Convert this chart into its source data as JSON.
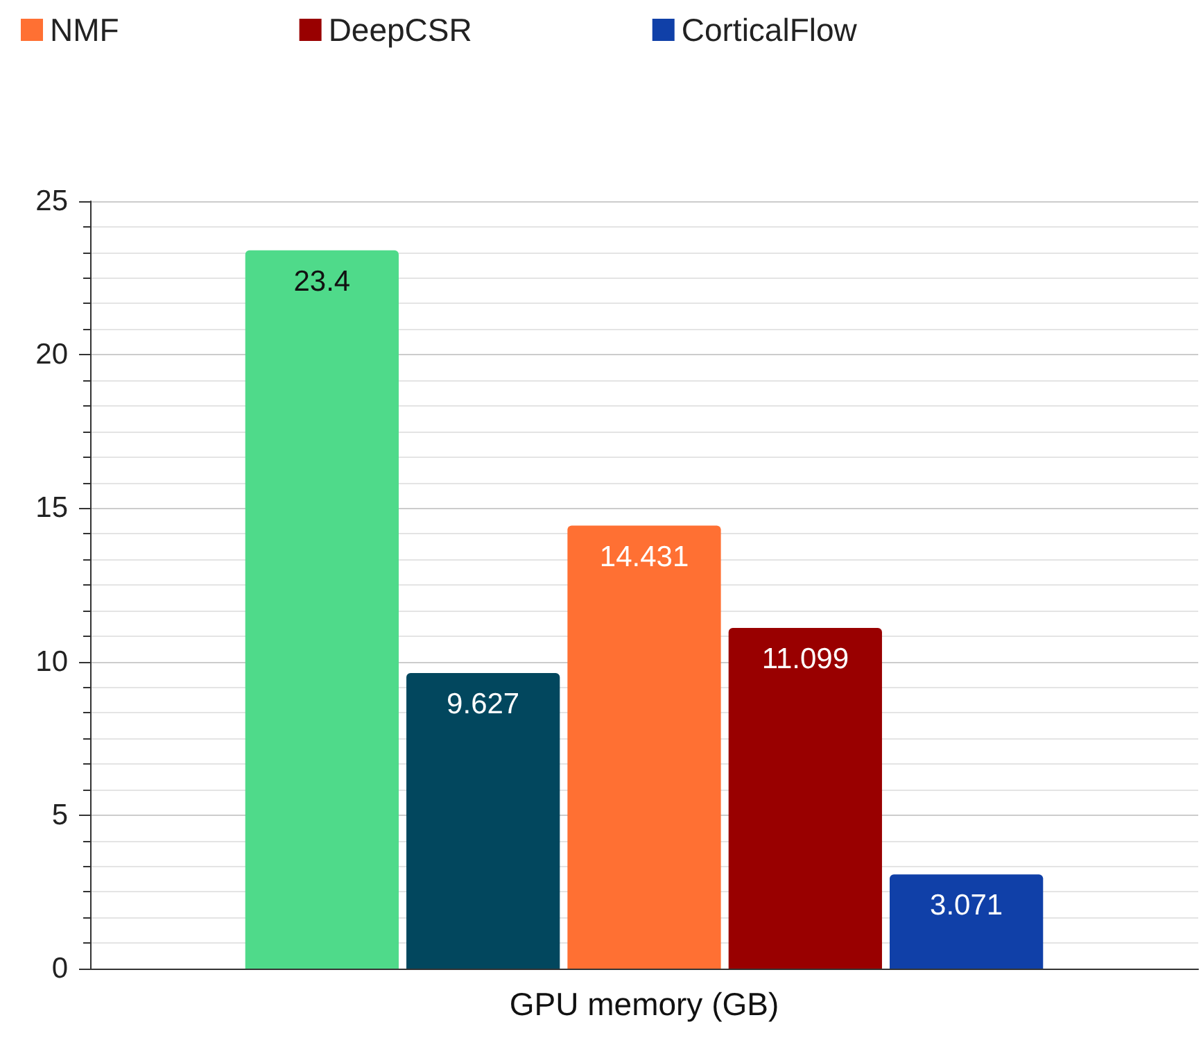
{
  "chart_data": {
    "type": "bar",
    "categories": [
      "GPU memory (GB)"
    ],
    "series": [
      {
        "color": "#4fda8a",
        "values": [
          23.4
        ]
      },
      {
        "color": "#02475e",
        "values": [
          9.627
        ]
      },
      {
        "name": "NMF",
        "color": "#ff7033",
        "values": [
          14.431
        ]
      },
      {
        "name": "DeepCSR",
        "color": "#990000",
        "values": [
          11.099
        ]
      },
      {
        "name": "CorticalFlow",
        "color": "#1040a8",
        "values": [
          3.071
        ]
      }
    ],
    "ylim": [
      0,
      25
    ],
    "yticks": [
      0,
      5,
      10,
      15,
      20,
      25
    ],
    "grid": true,
    "legend": "top left",
    "data_labels": true
  }
}
